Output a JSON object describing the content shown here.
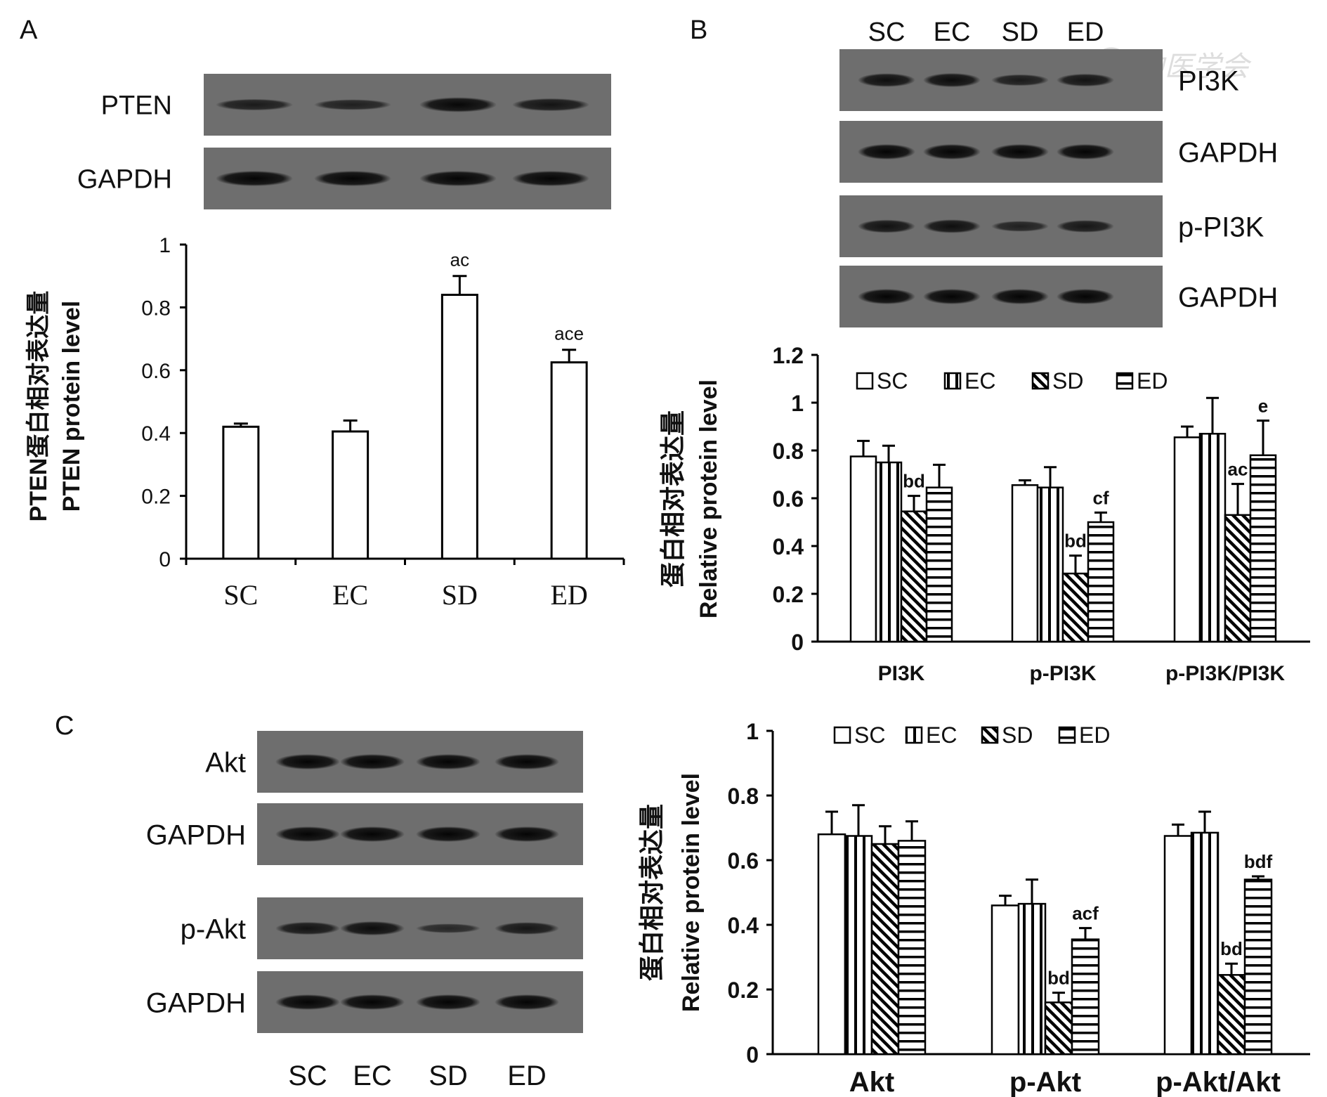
{
  "panel_letters": [
    "A",
    "B",
    "C"
  ],
  "watermark": "中医学会",
  "blots": {
    "A": {
      "lanes": [
        "SC",
        "EC",
        "SD",
        "ED"
      ],
      "rows": [
        {
          "label": "PTEN",
          "intensity": [
            0.55,
            0.45,
            0.95,
            0.7
          ]
        },
        {
          "label": "GAPDH",
          "intensity": [
            1,
            1,
            1,
            1
          ]
        }
      ]
    },
    "B": {
      "lanes": [
        "SC",
        "EC",
        "SD",
        "ED"
      ],
      "rows": [
        {
          "label": "PI3K",
          "intensity": [
            0.8,
            0.85,
            0.55,
            0.7
          ]
        },
        {
          "label": "GAPDH",
          "intensity": [
            1,
            1,
            1,
            1
          ]
        },
        {
          "label": "p-PI3K",
          "intensity": [
            0.75,
            0.8,
            0.45,
            0.65
          ]
        },
        {
          "label": "GAPDH",
          "intensity": [
            1,
            1,
            1,
            1
          ]
        }
      ]
    },
    "C": {
      "lanes": [
        "SC",
        "EC",
        "SD",
        "ED"
      ],
      "rows": [
        {
          "label": "Akt",
          "intensity": [
            1,
            1,
            1,
            1
          ]
        },
        {
          "label": "GAPDH",
          "intensity": [
            1,
            1,
            1,
            1
          ]
        },
        {
          "label": "p-Akt",
          "intensity": [
            0.7,
            0.85,
            0.3,
            0.65
          ]
        },
        {
          "label": "GAPDH",
          "intensity": [
            1,
            1,
            1,
            1
          ]
        }
      ]
    }
  },
  "chart_data": [
    {
      "panel": "A",
      "type": "bar",
      "ylabel_lines": [
        "PTEN蛋白相对表达量",
        "PTEN protein level"
      ],
      "categories": [
        "SC",
        "EC",
        "SD",
        "ED"
      ],
      "values": [
        0.42,
        0.405,
        0.84,
        0.625
      ],
      "errors": [
        0.01,
        0.035,
        0.06,
        0.04
      ],
      "annotations": [
        "",
        "",
        "ac",
        "ace"
      ],
      "ylim": [
        0,
        1
      ],
      "yticks": [
        "0",
        "0.2",
        "0.4",
        "0.6",
        "0.8",
        "1"
      ],
      "grid": false
    },
    {
      "panel": "B",
      "type": "bar",
      "ylabel_lines": [
        "蛋白相对表达量",
        "Relative protein level"
      ],
      "categories": [
        "PI3K",
        "p-PI3K",
        "p-PI3K/PI3K"
      ],
      "legend": [
        "SC",
        "EC",
        "SD",
        "ED"
      ],
      "legend_position": "top",
      "series": [
        {
          "name": "SC",
          "values": [
            0.775,
            0.655,
            0.855
          ],
          "errors": [
            0.065,
            0.02,
            0.045
          ]
        },
        {
          "name": "EC",
          "values": [
            0.75,
            0.645,
            0.87
          ],
          "errors": [
            0.07,
            0.085,
            0.15
          ]
        },
        {
          "name": "SD",
          "values": [
            0.545,
            0.285,
            0.53
          ],
          "errors": [
            0.065,
            0.075,
            0.13
          ]
        },
        {
          "name": "ED",
          "values": [
            0.645,
            0.5,
            0.78
          ],
          "errors": [
            0.095,
            0.04,
            0.145
          ]
        }
      ],
      "annotations": [
        {
          "category": 0,
          "series": 2,
          "text": "bd"
        },
        {
          "category": 1,
          "series": 2,
          "text": "bd"
        },
        {
          "category": 1,
          "series": 3,
          "text": "cf"
        },
        {
          "category": 2,
          "series": 2,
          "text": "ac"
        },
        {
          "category": 2,
          "series": 3,
          "text": "e"
        }
      ],
      "ylim": [
        0,
        1.2
      ],
      "yticks": [
        "0",
        "0.2",
        "0.4",
        "0.6",
        "0.8",
        "1",
        "1.2"
      ],
      "grid": false
    },
    {
      "panel": "C",
      "type": "bar",
      "ylabel_lines": [
        "蛋白相对表达量",
        "Relative protein level"
      ],
      "categories": [
        "Akt",
        "p-Akt",
        "p-Akt/Akt"
      ],
      "legend": [
        "SC",
        "EC",
        "SD",
        "ED"
      ],
      "legend_position": "top",
      "series": [
        {
          "name": "SC",
          "values": [
            0.68,
            0.46,
            0.675
          ],
          "errors": [
            0.07,
            0.03,
            0.035
          ]
        },
        {
          "name": "EC",
          "values": [
            0.675,
            0.465,
            0.685
          ],
          "errors": [
            0.095,
            0.075,
            0.065
          ]
        },
        {
          "name": "SD",
          "values": [
            0.65,
            0.16,
            0.245
          ],
          "errors": [
            0.055,
            0.03,
            0.035
          ]
        },
        {
          "name": "ED",
          "values": [
            0.66,
            0.355,
            0.54
          ],
          "errors": [
            0.06,
            0.035,
            0.01
          ]
        }
      ],
      "annotations": [
        {
          "category": 1,
          "series": 2,
          "text": "bd"
        },
        {
          "category": 1,
          "series": 3,
          "text": "acf"
        },
        {
          "category": 2,
          "series": 2,
          "text": "bd"
        },
        {
          "category": 2,
          "series": 3,
          "text": "bdf"
        }
      ],
      "ylim": [
        0,
        1
      ],
      "yticks": [
        "0",
        "0.2",
        "0.4",
        "0.6",
        "0.8",
        "1"
      ],
      "grid": false
    }
  ]
}
